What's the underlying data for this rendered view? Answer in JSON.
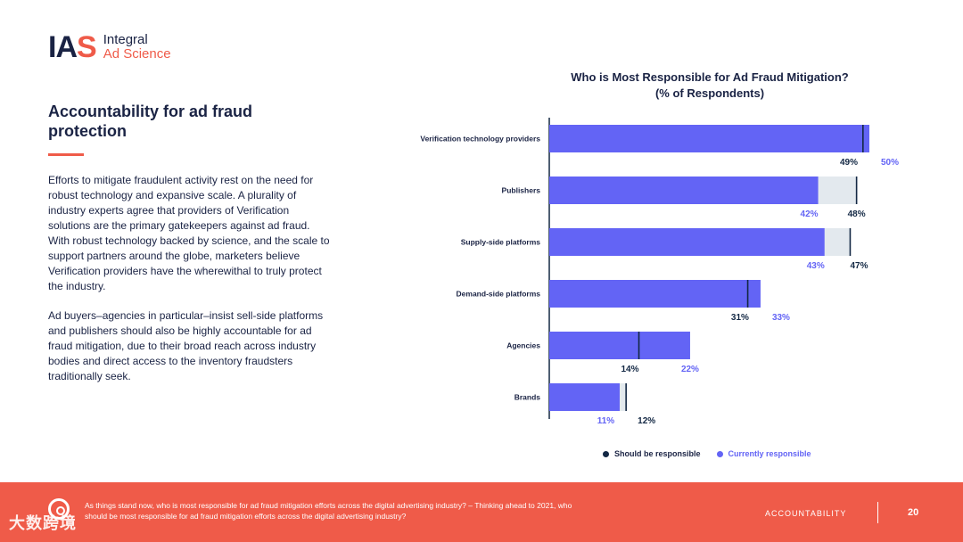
{
  "logo": {
    "mark_ia": "IA",
    "mark_s": "S",
    "line1": "Integral",
    "line2": "Ad Science"
  },
  "left": {
    "heading": "Accountability for ad fraud protection",
    "p1": "Efforts to mitigate fraudulent activity rest on the need for robust technology and expansive scale. A plurality of industry experts agree that providers of Verification solutions are the primary gatekeepers against ad fraud. With robust technology backed by science, and the scale to support partners around the globe, marketers believe Verification providers have the wherewithal to truly protect the industry.",
    "p2": "Ad buyers–agencies in particular–insist sell-side platforms and publishers should also be highly accountable for ad fraud mitigation, due to their broad reach across industry bodies and direct access to the inventory fraudsters traditionally seek."
  },
  "chart_title_line1": "Who is Most Responsible for Ad Fraud Mitigation?",
  "chart_title_line2": "(% of Respondents)",
  "legend": {
    "should": "Should be responsible",
    "currently": "Currently responsible"
  },
  "colors": {
    "currently": "#6364f5",
    "should": "#132844",
    "gap": "#e3e9ee",
    "accent": "#ef5b49",
    "text": "#1a2344"
  },
  "chart_data": {
    "type": "bar",
    "title": "Who is Most Responsible for Ad Fraud Mitigation? (% of Respondents)",
    "categories": [
      "Verification technology providers",
      "Publishers",
      "Supply-side platforms",
      "Demand-side platforms",
      "Agencies",
      "Brands"
    ],
    "series": [
      {
        "name": "Should be responsible",
        "values": [
          49,
          48,
          47,
          31,
          14,
          12
        ]
      },
      {
        "name": "Currently responsible",
        "values": [
          50,
          42,
          43,
          33,
          22,
          11
        ]
      }
    ],
    "value_labels": [
      [
        "49%",
        "50%"
      ],
      [
        "42%",
        "48%"
      ],
      [
        "43%",
        "47%"
      ],
      [
        "31%",
        "33%"
      ],
      [
        "14%",
        "22%"
      ],
      [
        "11%",
        "12%"
      ]
    ],
    "orientation": "horizontal",
    "xlim": [
      0,
      50
    ],
    "grid": false,
    "legend_position": "bottom"
  },
  "footer": {
    "note": "As things stand now, who is most responsible for ad fraud mitigation efforts across the digital advertising industry? – Thinking ahead to 2021, who should be most responsible for ad fraud mitigation efforts across the digital advertising industry?",
    "section": "ACCOUNTABILITY",
    "page": "20",
    "watermark": "大数跨境"
  }
}
